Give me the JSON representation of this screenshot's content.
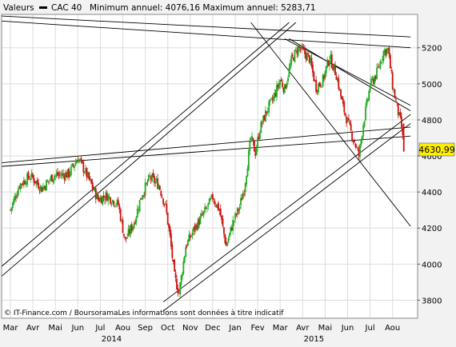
{
  "header": {
    "legend_prefix": "Valeurs",
    "legend_series": "CAC 40",
    "range_text": "Minimum annuel: 4076,16 Maximum annuel: 5283,71"
  },
  "footer": {
    "source_text": "© IT-Finance.com / BoursoramaLes informations sont données à titre indicatif"
  },
  "last_price_label": "4630,99",
  "colors": {
    "background": "#f2f2f2",
    "plot_background": "#ffffff",
    "up_candle": "#22aa22",
    "down_candle": "#cc1111",
    "trendline": "#000000",
    "price_tag": "#ffee00"
  },
  "chart_data": {
    "type": "candlestick",
    "x_axis": {
      "month_labels": [
        "Mar",
        "Avr",
        "Mai",
        "Jun",
        "Jul",
        "Aou",
        "Sep",
        "Oct",
        "Nov",
        "Dec",
        "Jan",
        "Fev",
        "Mar",
        "Avr",
        "Mai",
        "Jun",
        "Jul",
        "Aou"
      ],
      "month_index": [
        0,
        1,
        2,
        3,
        4,
        5,
        6,
        7,
        8,
        9,
        10,
        11,
        12,
        13,
        14,
        15,
        16,
        17
      ],
      "year_labels": [
        "2014",
        "2015"
      ],
      "year_index": [
        4.5,
        13.5
      ],
      "range": [
        0,
        17.75
      ]
    },
    "y_axis": {
      "ticks": [
        3800,
        4000,
        4200,
        4400,
        4600,
        4800,
        5000,
        5200
      ],
      "range": [
        3700,
        5385
      ],
      "position": "right"
    },
    "grid": true,
    "series": [
      {
        "name": "CAC 40",
        "anchors": [
          [
            0.0,
            4300
          ],
          [
            0.4,
            4440
          ],
          [
            0.9,
            4490
          ],
          [
            1.4,
            4420
          ],
          [
            1.9,
            4490
          ],
          [
            2.6,
            4500
          ],
          [
            3.0,
            4590
          ],
          [
            3.3,
            4520
          ],
          [
            3.6,
            4440
          ],
          [
            3.9,
            4360
          ],
          [
            4.3,
            4380
          ],
          [
            4.8,
            4330
          ],
          [
            5.1,
            4130
          ],
          [
            5.5,
            4230
          ],
          [
            5.8,
            4370
          ],
          [
            6.2,
            4480
          ],
          [
            6.6,
            4440
          ],
          [
            6.9,
            4320
          ],
          [
            7.1,
            4150
          ],
          [
            7.3,
            3930
          ],
          [
            7.5,
            3840
          ],
          [
            7.8,
            4100
          ],
          [
            8.2,
            4200
          ],
          [
            8.6,
            4280
          ],
          [
            9.0,
            4370
          ],
          [
            9.3,
            4300
          ],
          [
            9.6,
            4100
          ],
          [
            9.9,
            4230
          ],
          [
            10.2,
            4320
          ],
          [
            10.4,
            4420
          ],
          [
            10.7,
            4700
          ],
          [
            10.9,
            4620
          ],
          [
            11.1,
            4750
          ],
          [
            11.4,
            4850
          ],
          [
            11.7,
            4920
          ],
          [
            12.0,
            5020
          ],
          [
            12.2,
            4970
          ],
          [
            12.5,
            5130
          ],
          [
            12.8,
            5200
          ],
          [
            13.0,
            5180
          ],
          [
            13.3,
            5140
          ],
          [
            13.6,
            4980
          ],
          [
            13.9,
            5020
          ],
          [
            14.2,
            5150
          ],
          [
            14.5,
            5050
          ],
          [
            14.8,
            4870
          ],
          [
            15.1,
            4750
          ],
          [
            15.3,
            4680
          ],
          [
            15.5,
            4600
          ],
          [
            15.7,
            4780
          ],
          [
            16.0,
            4990
          ],
          [
            16.3,
            5060
          ],
          [
            16.6,
            5180
          ],
          [
            16.8,
            5190
          ],
          [
            17.0,
            4990
          ],
          [
            17.2,
            4870
          ],
          [
            17.4,
            4760
          ],
          [
            17.5,
            4631
          ]
        ],
        "last_value": 4630.99
      }
    ],
    "trendlines": [
      [
        [
          -0.6,
          5377
        ],
        [
          17.8,
          5260
        ]
      ],
      [
        [
          -0.6,
          5350
        ],
        [
          17.8,
          5200
        ]
      ],
      [
        [
          -0.6,
          4540
        ],
        [
          17.8,
          4710
        ]
      ],
      [
        [
          -0.6,
          4560
        ],
        [
          17.8,
          4760
        ]
      ],
      [
        [
          -0.6,
          3965
        ],
        [
          12.4,
          5340
        ]
      ],
      [
        [
          -0.6,
          3910
        ],
        [
          12.7,
          5340
        ]
      ],
      [
        [
          6.8,
          3790
        ],
        [
          17.8,
          4830
        ]
      ],
      [
        [
          6.8,
          3740
        ],
        [
          17.8,
          4780
        ]
      ],
      [
        [
          10.7,
          5340
        ],
        [
          17.8,
          4210
        ]
      ],
      [
        [
          12.4,
          5250
        ],
        [
          17.8,
          4850
        ]
      ],
      [
        [
          12.2,
          5250
        ],
        [
          17.8,
          4880
        ]
      ]
    ]
  }
}
